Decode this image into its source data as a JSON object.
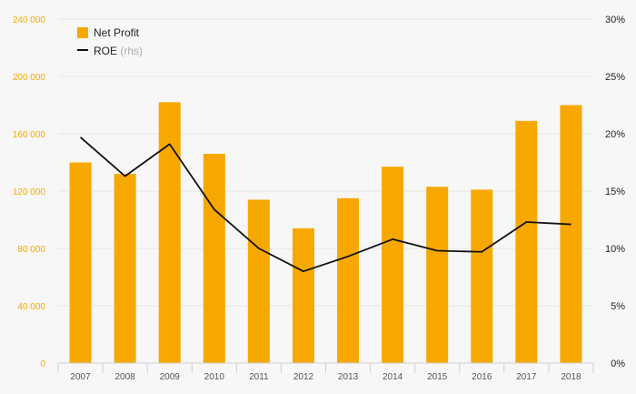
{
  "chart_data": {
    "type": "bar",
    "title": "",
    "categories": [
      "2007",
      "2008",
      "2009",
      "2010",
      "2011",
      "2012",
      "2013",
      "2014",
      "2015",
      "2016",
      "2017",
      "2018"
    ],
    "series": [
      {
        "name": "Net Profit",
        "type": "bar",
        "axis": "left",
        "values": [
          140000,
          132000,
          182000,
          146000,
          114000,
          94000,
          115000,
          137000,
          123000,
          121000,
          169000,
          180000
        ]
      },
      {
        "name": "ROE",
        "name_suffix": "(rhs)",
        "type": "line",
        "axis": "right",
        "values": [
          19.7,
          16.3,
          19.1,
          13.4,
          10.0,
          8.0,
          9.3,
          10.8,
          9.8,
          9.7,
          12.3,
          12.1
        ]
      }
    ],
    "y_left": {
      "ylim": [
        0,
        240000
      ],
      "ticks": [
        0,
        40000,
        80000,
        120000,
        160000,
        200000,
        240000
      ],
      "tick_labels": [
        "0",
        "40 000",
        "80 000",
        "120 000",
        "160 000",
        "200 000",
        "240 000"
      ]
    },
    "y_right": {
      "ylim": [
        0,
        30
      ],
      "ticks": [
        0,
        5,
        10,
        15,
        20,
        25,
        30
      ],
      "tick_labels": [
        "0%",
        "5%",
        "10%",
        "15%",
        "20%",
        "25%",
        "30%"
      ]
    },
    "grid": true,
    "legend_position": "top-left",
    "colors": {
      "bar": "#f7a800",
      "line": "#111111",
      "left_ticks": "#f5a800",
      "grid": "#e6e6e6"
    }
  }
}
